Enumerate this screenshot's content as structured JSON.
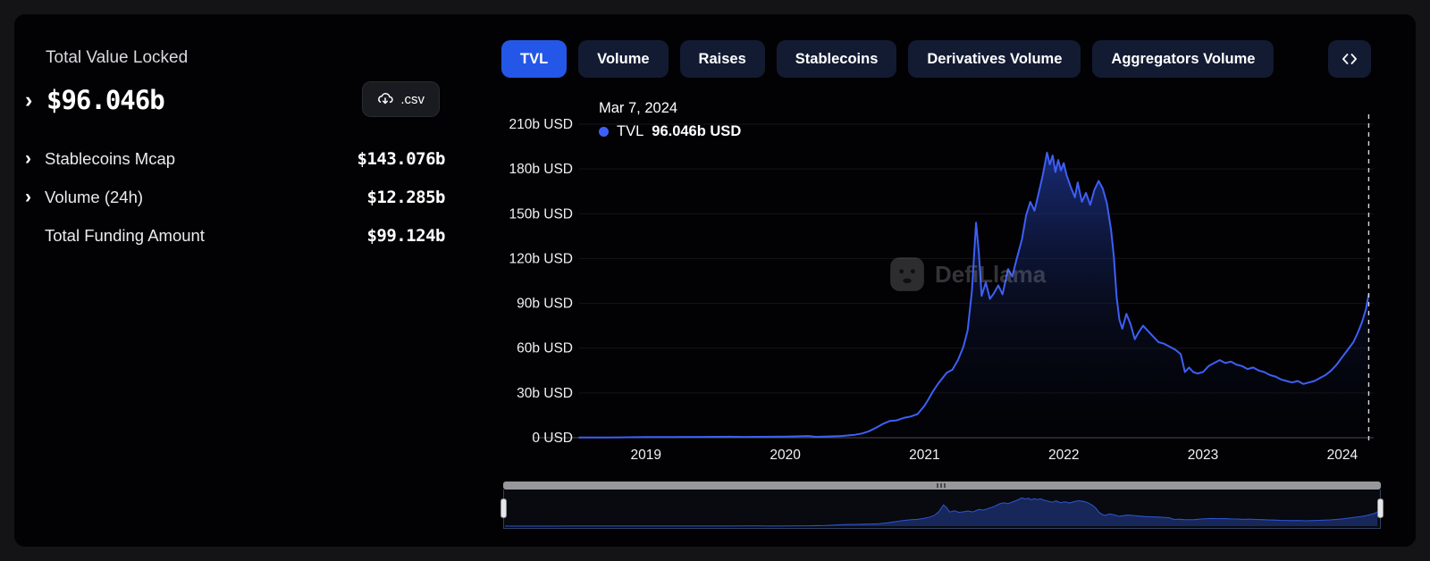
{
  "left_panel": {
    "title": "Total Value Locked",
    "main_value": "$96.046b",
    "csv_label": ".csv",
    "stats": [
      {
        "label": "Stablecoins Mcap",
        "value": "$143.076b",
        "expandable": true
      },
      {
        "label": "Volume (24h)",
        "value": "$12.285b",
        "expandable": true
      },
      {
        "label": "Total Funding Amount",
        "value": "$99.124b",
        "expandable": false
      }
    ]
  },
  "tabs": [
    {
      "label": "TVL",
      "active": true
    },
    {
      "label": "Volume",
      "active": false
    },
    {
      "label": "Raises",
      "active": false
    },
    {
      "label": "Stablecoins",
      "active": false
    },
    {
      "label": "Derivatives Volume",
      "active": false
    },
    {
      "label": "Aggregators Volume",
      "active": false
    }
  ],
  "chart": {
    "tooltip_date": "Mar 7, 2024",
    "series_label": "TVL",
    "tooltip_value": "96.046b USD",
    "watermark": "DefiLlama"
  },
  "icons": {
    "csv_button": "cloud-download-icon",
    "embed_button": "code-chevrons-icon",
    "legend_marker": "series-dot-icon",
    "expand_rows": "chevron-right-icon",
    "brush_grip": "grip-lines-icon",
    "watermark": "llama-logo-icon"
  },
  "colors": {
    "background": "#020204",
    "active_tab_blue": "#2457e7",
    "tab_navy": "#131b33",
    "line_blue": "#3e5ff7",
    "area_blue": "#2e53e8",
    "axis_text": "#f2f2f4"
  },
  "chart_data": {
    "type": "area",
    "title": "Total Value Locked (TVL)",
    "series_name": "TVL",
    "unit": "b USD",
    "legend_position": "top-left",
    "grid": true,
    "x_range": [
      2018.52,
      2024.2
    ],
    "ylim": [
      0,
      210
    ],
    "y_ticks": [
      {
        "v": 210,
        "label": "210b USD"
      },
      {
        "v": 180,
        "label": "180b USD"
      },
      {
        "v": 150,
        "label": "150b USD"
      },
      {
        "v": 120,
        "label": "120b USD"
      },
      {
        "v": 90,
        "label": "90b USD"
      },
      {
        "v": 60,
        "label": "60b USD"
      },
      {
        "v": 30,
        "label": "30b USD"
      },
      {
        "v": 0,
        "label": "0 USD"
      }
    ],
    "x_ticks": [
      {
        "v": 2019,
        "label": "2019"
      },
      {
        "v": 2020,
        "label": "2020"
      },
      {
        "v": 2021,
        "label": "2021"
      },
      {
        "v": 2022,
        "label": "2022"
      },
      {
        "v": 2023,
        "label": "2023"
      },
      {
        "v": 2024,
        "label": "2024"
      }
    ],
    "last_point": {
      "date": "Mar 7, 2024",
      "value_b_usd": 96.046
    },
    "points_year_tvl_busd": [
      [
        2018.52,
        0.1
      ],
      [
        2018.62,
        0.15
      ],
      [
        2018.72,
        0.2
      ],
      [
        2018.82,
        0.25
      ],
      [
        2018.92,
        0.33
      ],
      [
        2019.0,
        0.42
      ],
      [
        2019.1,
        0.5
      ],
      [
        2019.2,
        0.47
      ],
      [
        2019.3,
        0.55
      ],
      [
        2019.4,
        0.52
      ],
      [
        2019.5,
        0.58
      ],
      [
        2019.6,
        0.63
      ],
      [
        2019.7,
        0.55
      ],
      [
        2019.8,
        0.6
      ],
      [
        2019.9,
        0.66
      ],
      [
        2020.0,
        0.7
      ],
      [
        2020.1,
        0.95
      ],
      [
        2020.17,
        1.15
      ],
      [
        2020.22,
        0.6
      ],
      [
        2020.3,
        0.85
      ],
      [
        2020.4,
        1.15
      ],
      [
        2020.5,
        2.0
      ],
      [
        2020.55,
        2.8
      ],
      [
        2020.6,
        4.3
      ],
      [
        2020.65,
        6.6
      ],
      [
        2020.7,
        9.2
      ],
      [
        2020.75,
        11.2
      ],
      [
        2020.8,
        11.6
      ],
      [
        2020.85,
        13.2
      ],
      [
        2020.9,
        14.2
      ],
      [
        2020.95,
        15.8
      ],
      [
        2021.0,
        21.5
      ],
      [
        2021.03,
        26
      ],
      [
        2021.06,
        31
      ],
      [
        2021.1,
        36.5
      ],
      [
        2021.13,
        40
      ],
      [
        2021.16,
        43.5
      ],
      [
        2021.2,
        45.5
      ],
      [
        2021.24,
        52
      ],
      [
        2021.28,
        61
      ],
      [
        2021.31,
        72
      ],
      [
        2021.34,
        98
      ],
      [
        2021.37,
        144
      ],
      [
        2021.39,
        124
      ],
      [
        2021.41,
        95
      ],
      [
        2021.44,
        104
      ],
      [
        2021.47,
        93
      ],
      [
        2021.5,
        97
      ],
      [
        2021.53,
        102
      ],
      [
        2021.56,
        96
      ],
      [
        2021.6,
        113
      ],
      [
        2021.63,
        108
      ],
      [
        2021.66,
        119
      ],
      [
        2021.7,
        133
      ],
      [
        2021.73,
        149
      ],
      [
        2021.76,
        158
      ],
      [
        2021.79,
        152
      ],
      [
        2021.82,
        164
      ],
      [
        2021.85,
        176
      ],
      [
        2021.88,
        191
      ],
      [
        2021.9,
        183
      ],
      [
        2021.92,
        189
      ],
      [
        2021.94,
        178
      ],
      [
        2021.96,
        186
      ],
      [
        2021.98,
        179
      ],
      [
        2022.0,
        184
      ],
      [
        2022.02,
        176
      ],
      [
        2022.05,
        168
      ],
      [
        2022.08,
        161
      ],
      [
        2022.1,
        171
      ],
      [
        2022.13,
        158
      ],
      [
        2022.16,
        164
      ],
      [
        2022.19,
        156
      ],
      [
        2022.22,
        166
      ],
      [
        2022.25,
        172
      ],
      [
        2022.28,
        167
      ],
      [
        2022.31,
        157
      ],
      [
        2022.34,
        139
      ],
      [
        2022.36,
        121
      ],
      [
        2022.38,
        94
      ],
      [
        2022.4,
        79
      ],
      [
        2022.42,
        73
      ],
      [
        2022.45,
        83
      ],
      [
        2022.48,
        76
      ],
      [
        2022.51,
        66
      ],
      [
        2022.54,
        71
      ],
      [
        2022.57,
        75
      ],
      [
        2022.6,
        72
      ],
      [
        2022.64,
        68
      ],
      [
        2022.68,
        64
      ],
      [
        2022.72,
        63
      ],
      [
        2022.76,
        61
      ],
      [
        2022.8,
        59
      ],
      [
        2022.84,
        56
      ],
      [
        2022.87,
        44
      ],
      [
        2022.9,
        47
      ],
      [
        2022.93,
        44
      ],
      [
        2022.96,
        43
      ],
      [
        2023.0,
        44
      ],
      [
        2023.04,
        48
      ],
      [
        2023.08,
        50
      ],
      [
        2023.12,
        52
      ],
      [
        2023.16,
        50
      ],
      [
        2023.2,
        51
      ],
      [
        2023.24,
        49
      ],
      [
        2023.28,
        48
      ],
      [
        2023.32,
        46
      ],
      [
        2023.36,
        47
      ],
      [
        2023.4,
        45
      ],
      [
        2023.44,
        44
      ],
      [
        2023.48,
        42
      ],
      [
        2023.52,
        41
      ],
      [
        2023.56,
        39
      ],
      [
        2023.6,
        38
      ],
      [
        2023.64,
        37
      ],
      [
        2023.68,
        38
      ],
      [
        2023.72,
        36
      ],
      [
        2023.76,
        37
      ],
      [
        2023.8,
        38
      ],
      [
        2023.84,
        40
      ],
      [
        2023.88,
        42
      ],
      [
        2023.92,
        45
      ],
      [
        2023.96,
        49
      ],
      [
        2024.0,
        54
      ],
      [
        2024.04,
        59
      ],
      [
        2024.08,
        64
      ],
      [
        2024.11,
        70
      ],
      [
        2024.14,
        77
      ],
      [
        2024.17,
        86
      ],
      [
        2024.19,
        96.046
      ]
    ]
  }
}
